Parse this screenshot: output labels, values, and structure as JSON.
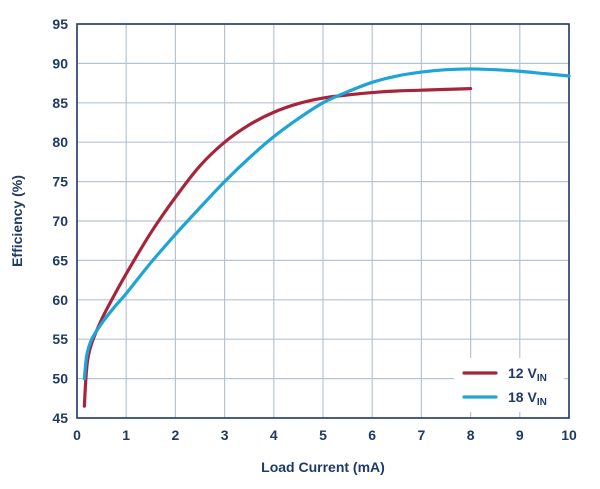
{
  "chart_data": {
    "type": "line",
    "title": "",
    "xlabel": "Load Current (mA)",
    "ylabel": "Efficiency (%)",
    "xlim": [
      0,
      10
    ],
    "ylim": [
      45,
      95
    ],
    "x_ticks": [
      0,
      1,
      2,
      3,
      4,
      5,
      6,
      7,
      8,
      9,
      10
    ],
    "y_ticks": [
      45,
      50,
      55,
      60,
      65,
      70,
      75,
      80,
      85,
      90,
      95
    ],
    "grid": true,
    "legend_position": "bottom-right",
    "series": [
      {
        "name": "12 V",
        "name_subscript": "IN",
        "color": "#a8243a",
        "x": [
          0.15,
          0.18,
          0.22,
          0.3,
          0.5,
          0.75,
          1.0,
          1.5,
          2.0,
          2.5,
          3.0,
          3.5,
          4.0,
          4.5,
          5.0,
          5.5,
          6.0,
          6.5,
          7.0,
          7.5,
          8.0
        ],
        "y": [
          46.5,
          50.0,
          52.5,
          54.5,
          57.5,
          60.5,
          63.3,
          68.5,
          73.0,
          77.0,
          80.0,
          82.2,
          83.8,
          84.9,
          85.6,
          86.0,
          86.3,
          86.5,
          86.6,
          86.7,
          86.8
        ]
      },
      {
        "name": "18 V",
        "name_subscript": "IN",
        "color": "#1ea4d6",
        "x": [
          0.15,
          0.2,
          0.3,
          0.5,
          0.75,
          1.0,
          1.5,
          2.0,
          2.5,
          3.0,
          3.5,
          4.0,
          4.5,
          5.0,
          5.5,
          6.0,
          6.5,
          7.0,
          7.5,
          8.0,
          8.5,
          9.0,
          9.5,
          10.0
        ],
        "y": [
          50.0,
          53.0,
          55.0,
          57.0,
          59.0,
          60.8,
          64.7,
          68.3,
          71.7,
          75.0,
          78.0,
          80.7,
          83.0,
          85.0,
          86.4,
          87.6,
          88.4,
          88.9,
          89.2,
          89.3,
          89.2,
          89.0,
          88.7,
          88.4
        ]
      }
    ]
  }
}
